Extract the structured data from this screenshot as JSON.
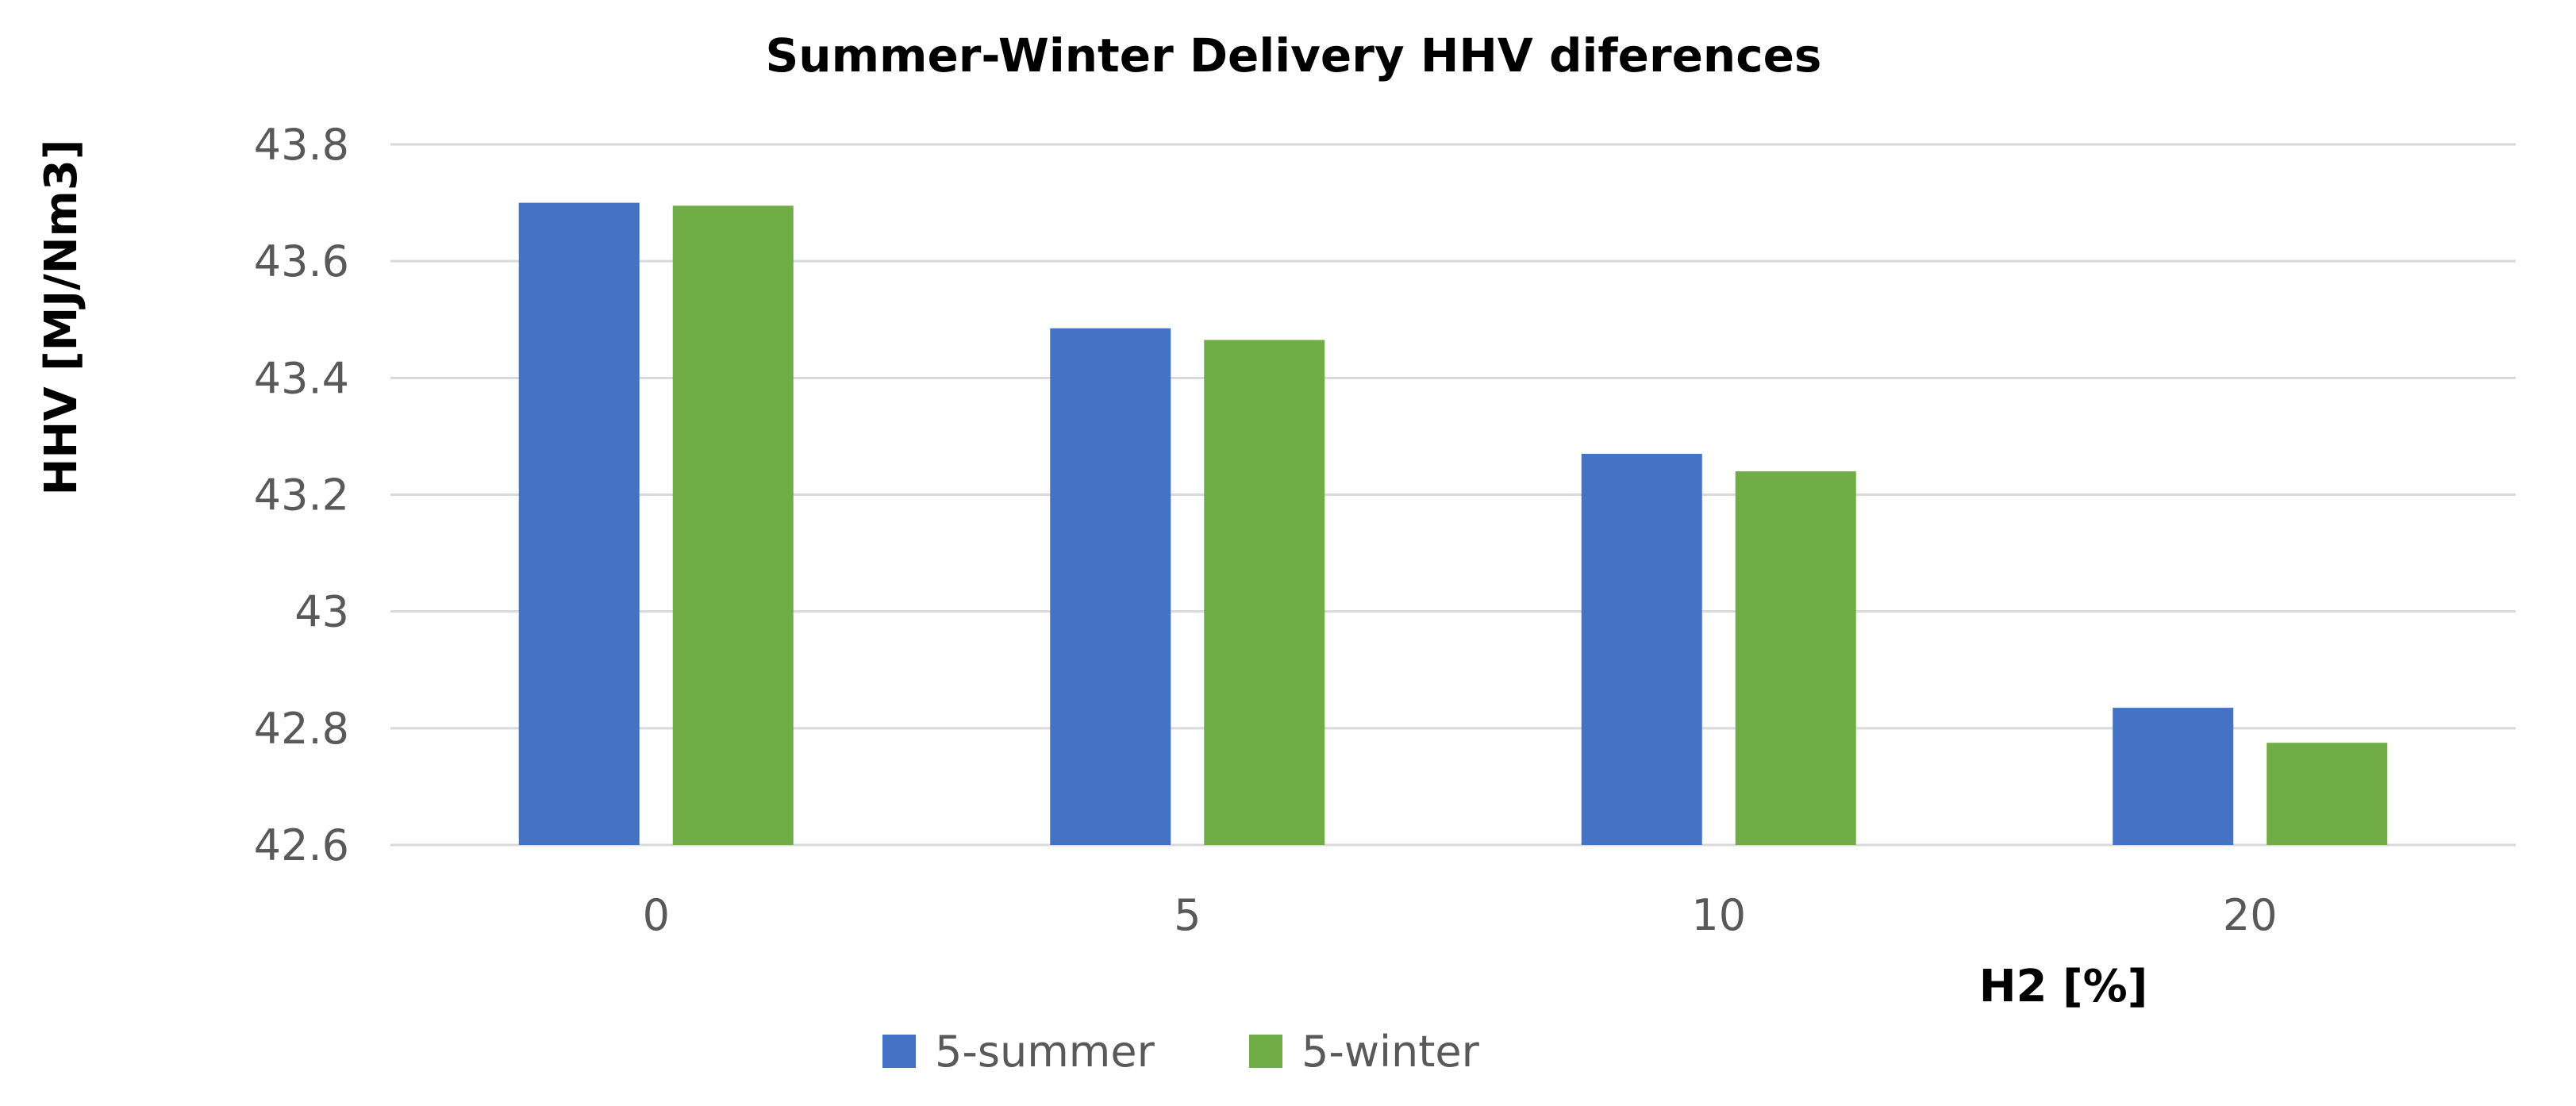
{
  "chart_data": {
    "type": "bar",
    "title": "Summer-Winter Delivery HHV diferences",
    "xlabel": "H2 [%]",
    "ylabel": "HHV [MJ/Nm3]",
    "categories": [
      "0",
      "5",
      "10",
      "20"
    ],
    "ylim": [
      42.6,
      43.8
    ],
    "yticks": [
      42.6,
      42.8,
      43,
      43.2,
      43.4,
      43.6,
      43.8
    ],
    "ytick_labels": [
      "42.6",
      "42.8",
      "43",
      "43.2",
      "43.4",
      "43.6",
      "43.8"
    ],
    "grid": true,
    "legend_position": "bottom",
    "series": [
      {
        "name": "5-summer",
        "color": "#4472C4",
        "values": [
          43.7,
          43.485,
          43.27,
          42.835
        ]
      },
      {
        "name": "5-winter",
        "color": "#70AD47",
        "values": [
          43.695,
          43.465,
          43.24,
          42.775
        ]
      }
    ]
  }
}
